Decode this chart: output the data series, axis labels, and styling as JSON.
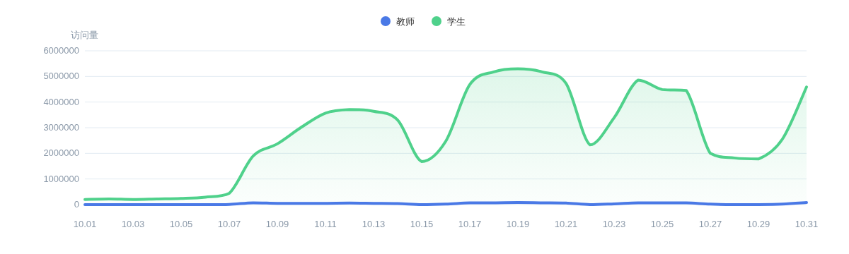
{
  "chart_data": {
    "type": "line",
    "ylabel": "访问量",
    "categories": [
      "10.01",
      null,
      "10.03",
      null,
      "10.05",
      null,
      "10.07",
      null,
      "10.09",
      null,
      "10.11",
      null,
      "10.13",
      null,
      "10.15",
      null,
      "10.17",
      null,
      "10.19",
      null,
      "10.21",
      null,
      "10.23",
      null,
      "10.25",
      null,
      "10.27",
      null,
      "10.29",
      null,
      "10.31"
    ],
    "series": [
      {
        "name": "教师",
        "color": "#4a79e6",
        "type": "line",
        "values": [
          0,
          0,
          0,
          0,
          0,
          0,
          10000,
          70000,
          50000,
          50000,
          50000,
          60000,
          50000,
          40000,
          0,
          20000,
          70000,
          70000,
          80000,
          70000,
          60000,
          0,
          30000,
          70000,
          70000,
          70000,
          20000,
          0,
          0,
          20000,
          80000
        ]
      },
      {
        "name": "学生",
        "color": "#4fd18b",
        "type": "area",
        "values": [
          200000,
          220000,
          200000,
          220000,
          240000,
          290000,
          440000,
          1900000,
          2370000,
          3020000,
          3570000,
          3710000,
          3640000,
          3300000,
          1680000,
          2470000,
          4680000,
          5180000,
          5300000,
          5180000,
          4730000,
          2330000,
          3390000,
          4860000,
          4490000,
          4450000,
          2000000,
          1820000,
          1780000,
          2560000,
          4590000
        ]
      }
    ],
    "ylim": [
      0,
      6000000
    ],
    "yticks": [
      0,
      1000000,
      2000000,
      3000000,
      4000000,
      5000000,
      6000000
    ],
    "grid": "y",
    "legend": "top",
    "marker": "none",
    "line_style": "solid"
  }
}
